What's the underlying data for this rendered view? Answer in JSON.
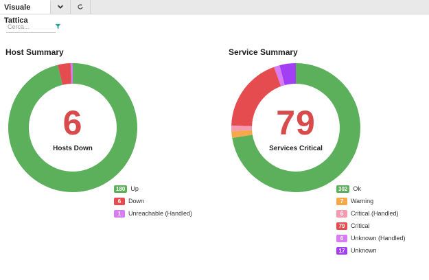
{
  "tab": {
    "title": "Visuale Tattica",
    "dropdown_icon": "chevron-down-icon",
    "refresh_icon": "refresh-icon"
  },
  "search": {
    "placeholder": "Cerca...",
    "value": ""
  },
  "filter_icon": "filter-icon",
  "colors": {
    "ok": "#5cb05c",
    "down": "#e54c4f",
    "warning": "#f6a94a",
    "critical_handled": "#f59ab0",
    "unknown_handled": "#d77cf2",
    "unknown": "#a23ff5"
  },
  "host_summary": {
    "title": "Host Summary",
    "center_value": "6",
    "center_label": "Hosts Down",
    "segments": [
      {
        "label": "Up",
        "count": 180,
        "color": "#5cb05c"
      },
      {
        "label": "Down",
        "count": 6,
        "color": "#e54c4f"
      },
      {
        "label": "Unreachable (Handled)",
        "count": 1,
        "color": "#d77cf2"
      }
    ]
  },
  "service_summary": {
    "title": "Service Summary",
    "center_value": "79",
    "center_label": "Services Critical",
    "segments": [
      {
        "label": "Ok",
        "count": 302,
        "color": "#5cb05c"
      },
      {
        "label": "Warning",
        "count": 7,
        "color": "#f6a94a"
      },
      {
        "label": "Critical (Handled)",
        "count": 6,
        "color": "#f59ab0"
      },
      {
        "label": "Critical",
        "count": 79,
        "color": "#e54c4f"
      },
      {
        "label": "Unknown (Handled)",
        "count": 6,
        "color": "#d77cf2"
      },
      {
        "label": "Unknown",
        "count": 17,
        "color": "#a23ff5"
      }
    ]
  }
}
